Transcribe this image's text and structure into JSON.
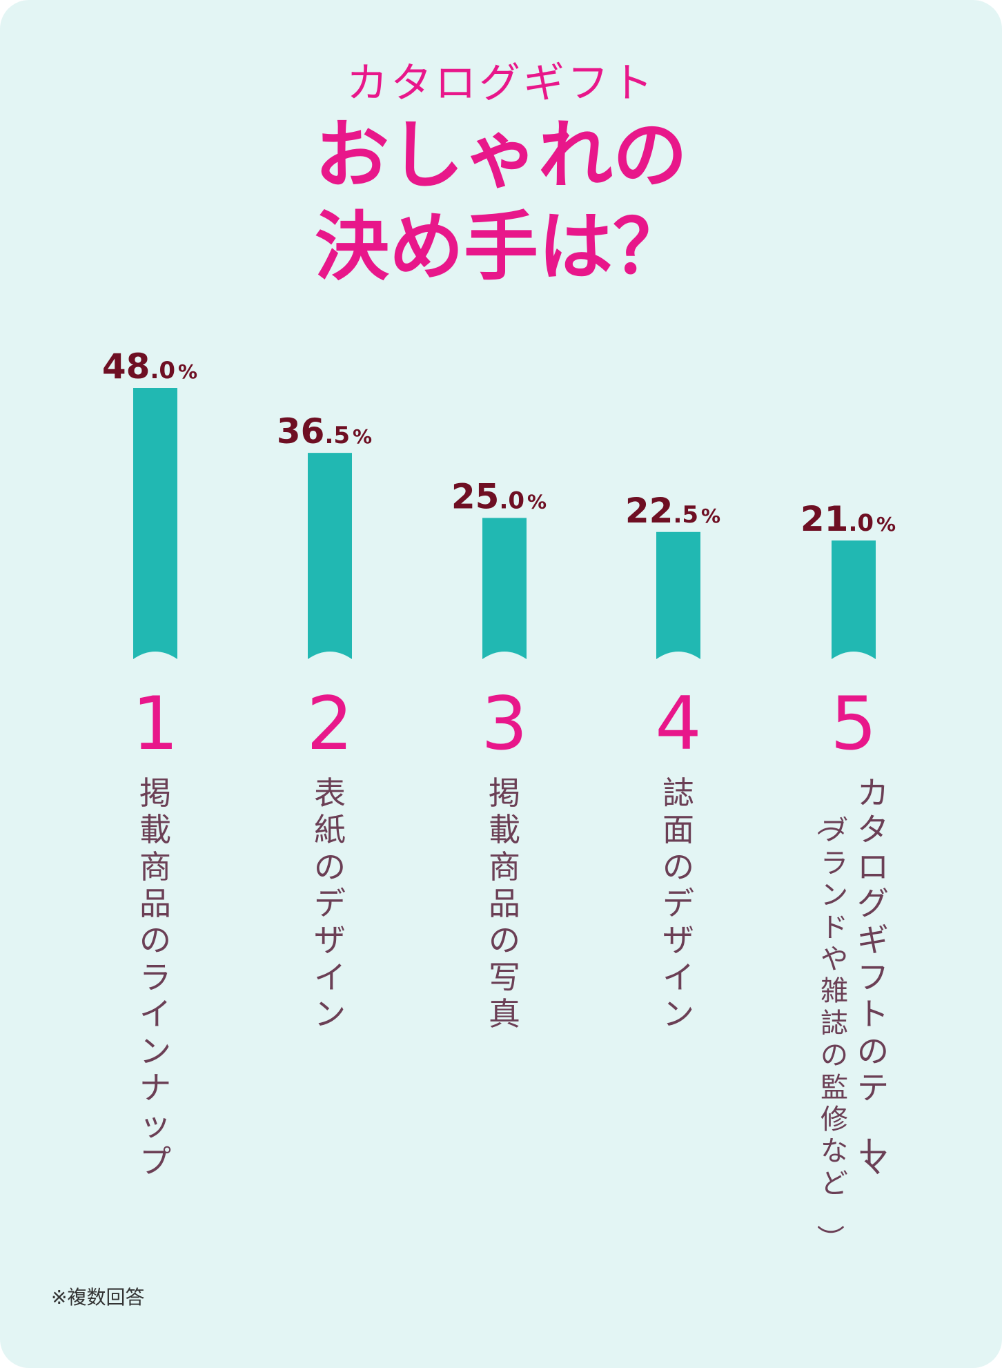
{
  "title": {
    "line1": "カタログギフト",
    "line2": "おしゃれの",
    "line3": "決め手は？"
  },
  "note": "※複数回答",
  "colors": {
    "background": "#e3f5f4",
    "title": "#e8178a",
    "bar": "#21b8b2",
    "value": "#6e0f23",
    "rank": "#e8178a",
    "label": "#6b3f55"
  },
  "chart_data": {
    "type": "bar",
    "unit": "%",
    "ylim": [
      0,
      48
    ],
    "grid": false,
    "categories": [
      "掲載商品のラインナップ",
      "表紙のデザイン",
      "掲載商品の写真",
      "誌面のデザイン",
      "カタログギフトのテーマ（ブランドや雑誌の監修など）"
    ],
    "ranks": [
      "1",
      "2",
      "3",
      "4",
      "5"
    ],
    "values": [
      48.0,
      36.5,
      25.0,
      22.5,
      21.0
    ],
    "value_labels": [
      "48.0",
      "36.5",
      "25.0",
      "22.5",
      "21.0"
    ]
  }
}
